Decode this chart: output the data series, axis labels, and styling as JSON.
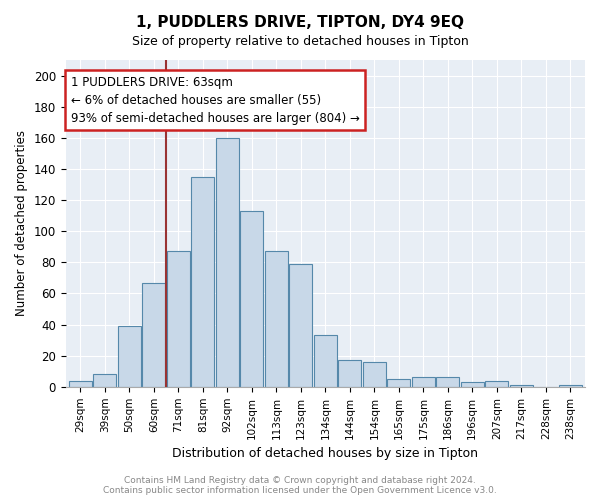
{
  "title": "1, PUDDLERS DRIVE, TIPTON, DY4 9EQ",
  "subtitle": "Size of property relative to detached houses in Tipton",
  "xlabel": "Distribution of detached houses by size in Tipton",
  "ylabel": "Number of detached properties",
  "bar_color": "#c8d8e8",
  "bar_edge_color": "#5588aa",
  "background_color": "#ffffff",
  "plot_bg_color": "#e8eef5",
  "grid_color": "#ffffff",
  "annotation_box_color": "#cc2222",
  "vline_color": "#993333",
  "categories": [
    "29sqm",
    "39sqm",
    "50sqm",
    "60sqm",
    "71sqm",
    "81sqm",
    "92sqm",
    "102sqm",
    "113sqm",
    "123sqm",
    "134sqm",
    "144sqm",
    "154sqm",
    "165sqm",
    "175sqm",
    "186sqm",
    "196sqm",
    "207sqm",
    "217sqm",
    "228sqm",
    "238sqm"
  ],
  "values": [
    4,
    8,
    39,
    67,
    87,
    135,
    160,
    113,
    87,
    79,
    33,
    17,
    16,
    5,
    6,
    6,
    3,
    4,
    1,
    0,
    1
  ],
  "vline_position": 3.5,
  "ann_line1": "1 PUDDLERS DRIVE: 63sqm",
  "ann_line2": "← 6% of detached houses are smaller (55)",
  "ann_line3": "93% of semi-detached houses are larger (804) →",
  "footer_line1": "Contains HM Land Registry data © Crown copyright and database right 2024.",
  "footer_line2": "Contains public sector information licensed under the Open Government Licence v3.0.",
  "ylim": [
    0,
    210
  ],
  "yticks": [
    0,
    20,
    40,
    60,
    80,
    100,
    120,
    140,
    160,
    180,
    200
  ]
}
